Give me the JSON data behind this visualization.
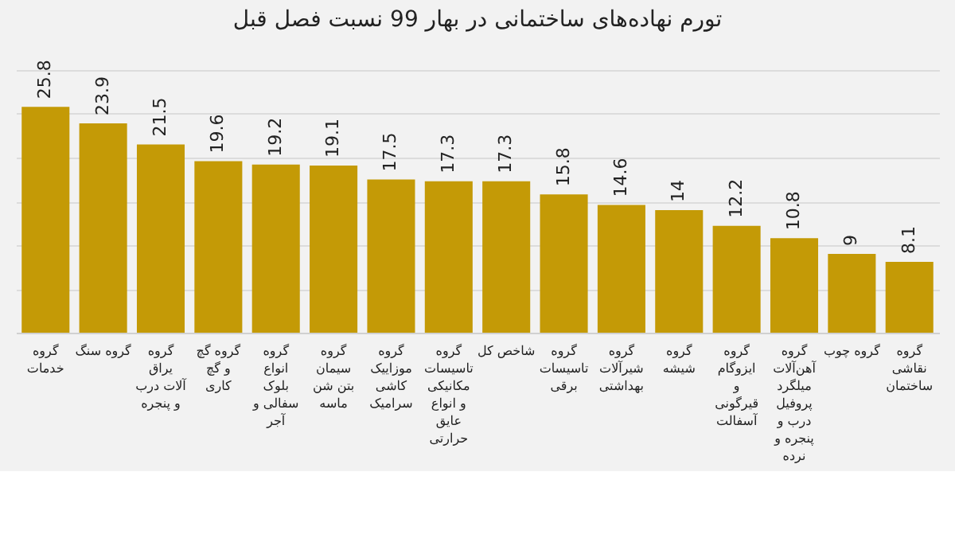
{
  "chart_data": {
    "type": "bar",
    "title": "تورم نهاده‌های ساختمانی در بهار 99 نسبت فصل قبل",
    "categories": [
      "گروه خدمات",
      "گروه سنگ",
      "گروه یراق آلات درب و پنجره",
      "گروه گچ و گچ کاری",
      "گروه انواع بلوک سفالی و آجر",
      "گروه سیمان بتن شن ماسه",
      "گروه موزاییک کاشی سرامیک",
      "گروه تاسیسات مکانیکی و انواع عایق حرارتی",
      "شاخص کل",
      "گروه تاسیسات برقی",
      "گروه شیرآلات بهداشتی",
      "گروه شیشه",
      "گروه ایزوگام و قیرگونی آسفالت",
      "گروه آهن‌آلات میلگرد پروفیل درب و پنجره و نرده",
      "گروه چوب",
      "گروه نقاشی ساختمان"
    ],
    "values": [
      25.8,
      23.9,
      21.5,
      19.6,
      19.2,
      19.1,
      17.5,
      17.3,
      17.3,
      15.8,
      14.6,
      14,
      12.2,
      10.8,
      9,
      8.1
    ],
    "color": "#c49a06",
    "data_labels": true,
    "ylim": [
      0,
      30
    ],
    "grid": "y",
    "tick_labels": "x"
  }
}
